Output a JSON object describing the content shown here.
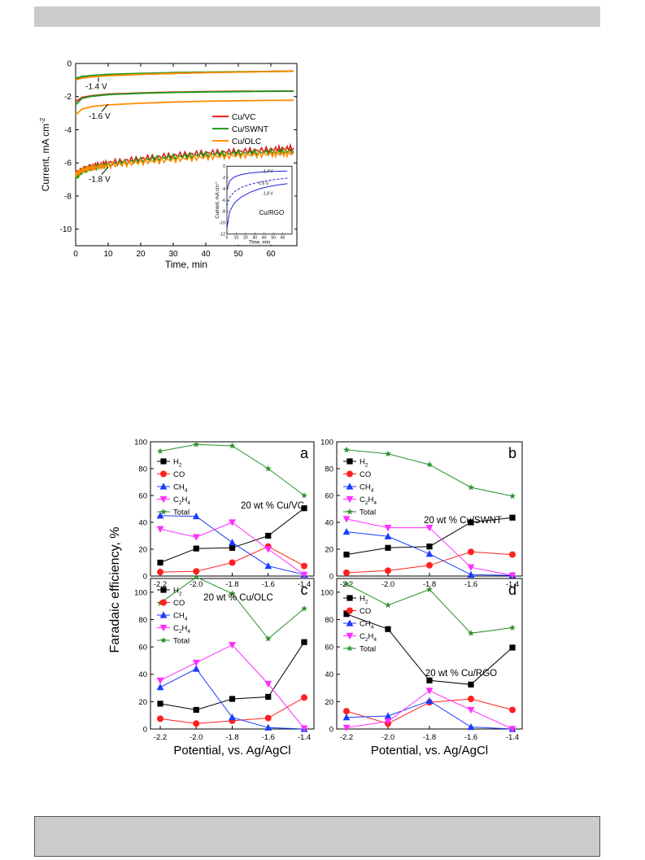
{
  "chart_data": [
    {
      "type": "line",
      "id": "current-time",
      "xlabel": "Time, min",
      "ylabel": "Current, mA cm",
      "ylabel_sup": "-2",
      "xlim": [
        0,
        68
      ],
      "ylim": [
        -11,
        0
      ],
      "xticks": [
        "0",
        "10",
        "20",
        "30",
        "40",
        "50",
        "60"
      ],
      "yticks": [
        "0",
        "-2",
        "-4",
        "-6",
        "-8",
        "-10"
      ],
      "legend": [
        "Cu/VC",
        "Cu/SWNT",
        "Cu/OLC"
      ],
      "colors": {
        "Cu/VC": "#e31a1c",
        "Cu/SWNT": "#1a9a1a",
        "Cu/OLC": "#ff8c00"
      },
      "annotations": [
        "-1.4 V",
        "-1.6 V",
        "-1.8 V"
      ],
      "curves": [
        {
          "name": "Cu/VC",
          "potential": "-1.4 V",
          "x": [
            0,
            2,
            5,
            10,
            20,
            30,
            40,
            50,
            60,
            67
          ],
          "y": [
            -0.95,
            -0.85,
            -0.8,
            -0.72,
            -0.65,
            -0.6,
            -0.55,
            -0.52,
            -0.48,
            -0.46
          ]
        },
        {
          "name": "Cu/SWNT",
          "potential": "-1.4 V",
          "x": [
            0,
            2,
            5,
            10,
            20,
            30,
            40,
            50,
            60,
            67
          ],
          "y": [
            -0.9,
            -0.78,
            -0.72,
            -0.66,
            -0.6,
            -0.55,
            -0.52,
            -0.5,
            -0.48,
            -0.47
          ]
        },
        {
          "name": "Cu/OLC",
          "potential": "-1.4 V",
          "x": [
            0,
            2,
            5,
            10,
            20,
            30,
            40,
            50,
            60,
            67
          ],
          "y": [
            -1.0,
            -0.88,
            -0.8,
            -0.74,
            -0.66,
            -0.6,
            -0.55,
            -0.52,
            -0.49,
            -0.47
          ]
        },
        {
          "name": "Cu/VC",
          "potential": "-1.6 V",
          "x": [
            0,
            2,
            5,
            10,
            20,
            30,
            40,
            50,
            60,
            67
          ],
          "y": [
            -2.3,
            -2.05,
            -1.95,
            -1.85,
            -1.78,
            -1.73,
            -1.7,
            -1.68,
            -1.67,
            -1.66
          ]
        },
        {
          "name": "Cu/SWNT",
          "potential": "-1.6 V",
          "x": [
            0,
            2,
            5,
            10,
            20,
            30,
            40,
            50,
            60,
            67
          ],
          "y": [
            -2.5,
            -2.1,
            -1.98,
            -1.88,
            -1.8,
            -1.75,
            -1.72,
            -1.7,
            -1.68,
            -1.67
          ]
        },
        {
          "name": "Cu/OLC",
          "potential": "-1.6 V",
          "x": [
            0,
            2,
            5,
            10,
            20,
            30,
            40,
            50,
            60,
            67
          ],
          "y": [
            -3.1,
            -2.75,
            -2.6,
            -2.5,
            -2.4,
            -2.33,
            -2.28,
            -2.25,
            -2.23,
            -2.22
          ]
        },
        {
          "name": "Cu/VC",
          "potential": "-1.8 V",
          "x": [
            0,
            2,
            5,
            10,
            20,
            30,
            40,
            50,
            60,
            67
          ],
          "y": [
            -6.7,
            -6.4,
            -6.2,
            -6.0,
            -5.75,
            -5.55,
            -5.4,
            -5.3,
            -5.2,
            -5.1
          ]
        },
        {
          "name": "Cu/SWNT",
          "potential": "-1.8 V",
          "x": [
            0,
            2,
            5,
            10,
            20,
            30,
            40,
            50,
            60,
            67
          ],
          "y": [
            -6.9,
            -6.5,
            -6.3,
            -6.1,
            -5.85,
            -5.65,
            -5.5,
            -5.42,
            -5.35,
            -5.3
          ]
        },
        {
          "name": "Cu/OLC",
          "potential": "-1.8 V",
          "x": [
            0,
            2,
            5,
            10,
            20,
            30,
            40,
            50,
            60,
            67
          ],
          "y": [
            -6.7,
            -6.45,
            -6.3,
            -6.15,
            -5.95,
            -5.8,
            -5.65,
            -5.55,
            -5.47,
            -5.42
          ]
        }
      ],
      "inset": {
        "label": "Cu/RGO",
        "xlabel": "Time, min",
        "ylabel": "Current, mA cm",
        "ylabel_sup": "-2",
        "xlim": [
          0,
          70
        ],
        "ylim": [
          -12,
          0
        ],
        "xticks": [
          "0",
          "10",
          "20",
          "30",
          "40",
          "50",
          "60"
        ],
        "yticks": [
          "0",
          "-2",
          "-4",
          "-6",
          "-8",
          "-10",
          "-12"
        ],
        "color": "#2525d8",
        "curves": [
          {
            "potential": "-1.4 V",
            "style": "solid",
            "x": [
              0,
              3,
              8,
              15,
              25,
              35,
              45,
              55,
              65
            ],
            "y": [
              -4.2,
              -2.6,
              -1.9,
              -1.5,
              -1.2,
              -1.05,
              -0.95,
              -0.9,
              -0.85
            ]
          },
          {
            "potential": "-1.6 V",
            "style": "dashed",
            "x": [
              0,
              3,
              8,
              15,
              25,
              35,
              45,
              55,
              65
            ],
            "y": [
              -7.0,
              -5.5,
              -4.5,
              -3.8,
              -3.2,
              -2.8,
              -2.5,
              -2.3,
              -2.1
            ]
          },
          {
            "potential": "-1.8 V",
            "style": "solid",
            "x": [
              0,
              3,
              8,
              15,
              25,
              35,
              45,
              55,
              65
            ],
            "y": [
              -11.0,
              -8.0,
              -6.5,
              -5.5,
              -4.6,
              -4.0,
              -3.6,
              -3.3,
              -3.1
            ]
          }
        ],
        "annotations": [
          "-1.4 V",
          "-1.6 V",
          "-1.8 V"
        ]
      }
    },
    {
      "type": "line",
      "id": "faradaic-efficiency",
      "shared_xlabel": "Potential, vs. Ag/AgCl",
      "shared_ylabel": "Faradaic efficiency, %",
      "categories": [
        "-2.2",
        "-2.0",
        "-1.8",
        "-1.6",
        "-1.4"
      ],
      "series_styles": {
        "H2": {
          "color": "#000000",
          "marker": "square"
        },
        "CO": {
          "color": "#ff2020",
          "marker": "circle"
        },
        "CH4": {
          "color": "#1a3cff",
          "marker": "triangle-up"
        },
        "C2H4": {
          "color": "#ff2dff",
          "marker": "triangle-down"
        },
        "Total": {
          "color": "#2a8f2a",
          "marker": "star"
        }
      },
      "legend_labels": [
        {
          "key": "H2",
          "base": "H",
          "sub": "2"
        },
        {
          "key": "CO",
          "base": "CO",
          "sub": ""
        },
        {
          "key": "CH4",
          "base": "CH",
          "sub": "4"
        },
        {
          "key": "C2H4",
          "base": "C",
          "sub": "2",
          "base2": "H",
          "sub2": "4"
        },
        {
          "key": "Total",
          "base": "Total",
          "sub": ""
        }
      ],
      "panels": [
        {
          "letter": "a",
          "title": "20 wt % Cu/VC",
          "ylim": [
            0,
            100
          ],
          "yticks": [
            "0",
            "20",
            "40",
            "60",
            "80",
            "100"
          ],
          "series": {
            "H2": [
              10,
              20.5,
              21,
              30,
              50.5
            ],
            "CO": [
              3,
              3.5,
              10,
              22,
              7.5
            ],
            "CH4": [
              45,
              44.5,
              25,
              7.5,
              1
            ],
            "C2H4": [
              35,
              29,
              40,
              20,
              1
            ],
            "Total": [
              93,
              98,
              97,
              80,
              60
            ]
          }
        },
        {
          "letter": "b",
          "title": "20 wt % Cu/SWNT",
          "ylim": [
            0,
            100
          ],
          "yticks": [
            "0",
            "20",
            "40",
            "60",
            "80",
            "100"
          ],
          "series": {
            "H2": [
              16,
              21,
              22,
              40,
              43.5
            ],
            "CO": [
              2.5,
              4,
              8,
              18,
              16
            ],
            "CH4": [
              33,
              29.5,
              16.5,
              1,
              0.5
            ],
            "C2H4": [
              42.5,
              36,
              36,
              6.5,
              0.5
            ],
            "Total": [
              94,
              91,
              83,
              66,
              59.5
            ]
          }
        },
        {
          "letter": "c",
          "title": "20 wt % Cu/OLC",
          "ylim": [
            0,
            110
          ],
          "yticks": [
            "0",
            "20",
            "40",
            "60",
            "80",
            "100"
          ],
          "series": {
            "H2": [
              18.5,
              14,
              22,
              23.5,
              63.5
            ],
            "CO": [
              7.5,
              4,
              6,
              8,
              23
            ],
            "CH4": [
              30.5,
              44,
              8.5,
              1,
              0
            ],
            "C2H4": [
              35.5,
              48.5,
              61.5,
              33,
              0.5
            ],
            "Total": [
              92,
              111,
              99,
              66,
              88
            ]
          }
        },
        {
          "letter": "d",
          "title": "20 wt % Cu/RGO",
          "ylim": [
            0,
            110
          ],
          "yticks": [
            "0",
            "20",
            "40",
            "60",
            "80",
            "100"
          ],
          "series": {
            "H2": [
              84,
              73,
              35.5,
              32.5,
              59.5
            ],
            "CO": [
              13,
              4,
              19.5,
              22,
              14
            ],
            "CH4": [
              8.5,
              9.5,
              20.5,
              1.5,
              0
            ],
            "C2H4": [
              1,
              5.5,
              28,
              14,
              0
            ],
            "Total": [
              106,
              90.5,
              102,
              70,
              74
            ]
          }
        }
      ]
    }
  ]
}
